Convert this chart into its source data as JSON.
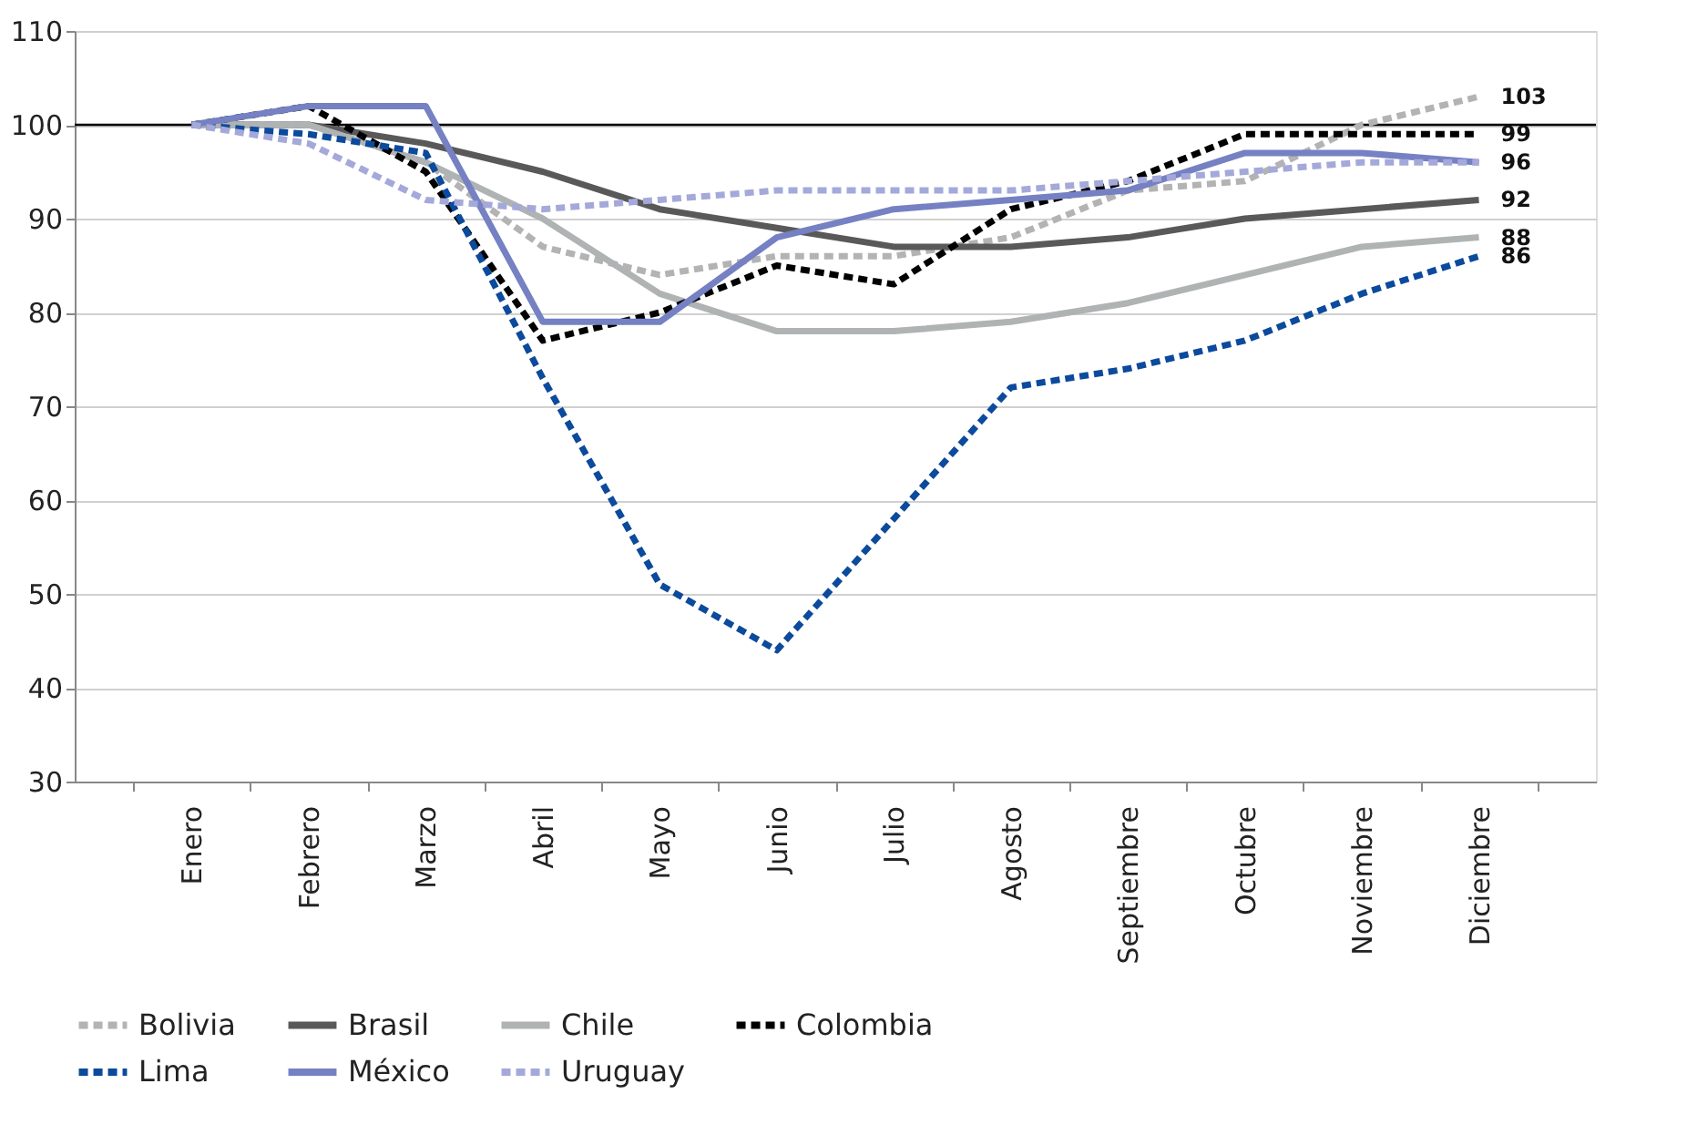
{
  "chart_data": {
    "type": "line",
    "categories": [
      "Enero",
      "Febrero",
      "Marzo",
      "Abril",
      "Mayo",
      "Junio",
      "Julio",
      "Agosto",
      "Septiembre",
      "Octubre",
      "Noviembre",
      "Diciembre"
    ],
    "series": [
      {
        "name": "Bolivia",
        "color": "#b3b3b3",
        "line_style": "dashed",
        "values": [
          100,
          100,
          96,
          87,
          84,
          86,
          86,
          88,
          93,
          94,
          100,
          103
        ],
        "value_labels": [
          null,
          null,
          null,
          null,
          null,
          null,
          null,
          null,
          null,
          null,
          null,
          "103"
        ]
      },
      {
        "name": "Brasil",
        "color": "#595959",
        "line_style": "solid",
        "values": [
          100,
          100,
          98,
          95,
          91,
          89,
          87,
          87,
          88,
          90,
          91,
          92
        ],
        "value_labels": [
          null,
          null,
          null,
          null,
          null,
          null,
          null,
          null,
          null,
          null,
          null,
          "92"
        ]
      },
      {
        "name": "Chile",
        "color": "#b0b3b3",
        "line_style": "solid",
        "values": [
          100,
          100,
          96,
          90,
          82,
          78,
          78,
          79,
          81,
          84,
          87,
          88
        ],
        "value_labels": [
          null,
          null,
          null,
          null,
          null,
          null,
          null,
          null,
          null,
          null,
          null,
          "88"
        ]
      },
      {
        "name": "Colombia",
        "color": "#000000",
        "line_style": "dashed",
        "values": [
          100,
          102,
          95,
          77,
          80,
          85,
          83,
          91,
          94,
          99,
          99,
          99
        ],
        "value_labels": [
          null,
          null,
          null,
          null,
          null,
          null,
          null,
          null,
          null,
          null,
          null,
          "99"
        ]
      },
      {
        "name": "Lima",
        "color": "#0b4a9c",
        "line_style": "dashed",
        "values": [
          100,
          99,
          97,
          73,
          51,
          44,
          58,
          72,
          74,
          77,
          82,
          86
        ],
        "value_labels": [
          null,
          null,
          null,
          null,
          null,
          null,
          null,
          null,
          null,
          null,
          null,
          "86"
        ]
      },
      {
        "name": "México",
        "color": "#7581c2",
        "line_style": "solid",
        "values": [
          100,
          102,
          102,
          79,
          79,
          88,
          91,
          92,
          93,
          97,
          97,
          96
        ],
        "value_labels": [
          null,
          null,
          null,
          null,
          null,
          null,
          null,
          null,
          null,
          null,
          null,
          "96"
        ]
      },
      {
        "name": "Uruguay",
        "color": "#a4a9da",
        "line_style": "dashed",
        "values": [
          100,
          98,
          92,
          91,
          92,
          93,
          93,
          93,
          94,
          95,
          96,
          96
        ],
        "value_labels": [
          null,
          null,
          null,
          null,
          null,
          null,
          null,
          null,
          null,
          null,
          null,
          null
        ]
      }
    ],
    "ylim": [
      30,
      110
    ],
    "yticks": [
      30,
      40,
      50,
      60,
      70,
      80,
      90,
      100,
      110
    ],
    "ref_lines": [
      {
        "axis": "y",
        "value": 100,
        "color": "#000000"
      }
    ],
    "grid": "y",
    "legend": "bottom"
  }
}
